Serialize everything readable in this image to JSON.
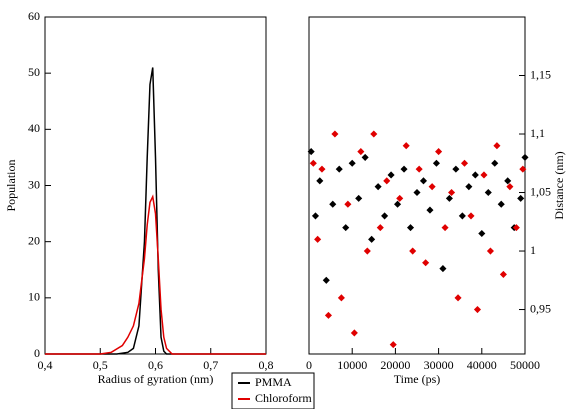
{
  "chart_data": [
    {
      "type": "line",
      "xlabel": "Radius of gyration (nm)",
      "ylabel": "Population",
      "xlim": [
        0.4,
        0.8
      ],
      "ylim": [
        0,
        60
      ],
      "xticks": [
        {
          "value": 0.4,
          "label": "0,4"
        },
        {
          "value": 0.5,
          "label": "0,5"
        },
        {
          "value": 0.6,
          "label": "0,6"
        },
        {
          "value": 0.7,
          "label": "0,7"
        },
        {
          "value": 0.8,
          "label": "0,8"
        }
      ],
      "yticks": [
        0,
        10,
        20,
        30,
        40,
        50,
        60
      ],
      "series": [
        {
          "name": "PMMA",
          "color": "#000000",
          "x": [
            0.4,
            0.5,
            0.53,
            0.55,
            0.56,
            0.57,
            0.58,
            0.585,
            0.59,
            0.595,
            0.6,
            0.605,
            0.61,
            0.615,
            0.62,
            0.8
          ],
          "values": [
            0,
            0,
            0,
            0.3,
            1,
            5,
            20,
            35,
            48,
            51,
            35,
            15,
            3,
            0.5,
            0,
            0
          ]
        },
        {
          "name": "Chloroform",
          "color": "#e00000",
          "x": [
            0.4,
            0.5,
            0.52,
            0.54,
            0.55,
            0.56,
            0.57,
            0.58,
            0.585,
            0.59,
            0.595,
            0.6,
            0.605,
            0.61,
            0.615,
            0.62,
            0.63,
            0.8
          ],
          "values": [
            0,
            0,
            0.3,
            1.5,
            3,
            5,
            9,
            17,
            23,
            27,
            28,
            25,
            17,
            8,
            3,
            1,
            0,
            0
          ]
        }
      ]
    },
    {
      "type": "scatter",
      "xlabel": "Time (ps)",
      "ylabel": "Distance (nm)",
      "xlim": [
        0,
        50000
      ],
      "ylim": [
        0.912,
        1.2
      ],
      "xticks": [
        0,
        10000,
        20000,
        30000,
        40000,
        50000
      ],
      "yticks": [
        {
          "value": 0.95,
          "label": "0,95"
        },
        1,
        {
          "value": 1.05,
          "label": "1,05"
        },
        {
          "value": 1.1,
          "label": "1,1"
        },
        {
          "value": 1.15,
          "label": "1,15"
        }
      ],
      "series": [
        {
          "color": "#000000",
          "x": [
            500,
            1500,
            2500,
            4000,
            5500,
            7000,
            8500,
            10000,
            11500,
            13000,
            14500,
            16000,
            17500,
            19000,
            20500,
            22000,
            23500,
            25000,
            26500,
            28000,
            29500,
            31000,
            32500,
            34000,
            35500,
            37000,
            38500,
            40000,
            41500,
            43000,
            44500,
            46000,
            47500,
            49000,
            50000
          ],
          "values": [
            1.085,
            1.03,
            1.06,
            0.975,
            1.04,
            1.07,
            1.02,
            1.075,
            1.045,
            1.08,
            1.01,
            1.055,
            1.03,
            1.065,
            1.04,
            1.07,
            1.02,
            1.05,
            1.06,
            1.035,
            1.075,
            0.985,
            1.045,
            1.07,
            1.03,
            1.055,
            1.065,
            1.015,
            1.05,
            1.075,
            1.04,
            1.06,
            1.02,
            1.045,
            1.08
          ]
        },
        {
          "color": "#e00000",
          "x": [
            1000,
            2000,
            3000,
            4500,
            6000,
            7500,
            9000,
            10500,
            12000,
            13500,
            15000,
            16500,
            18000,
            19500,
            21000,
            22500,
            24000,
            25500,
            27000,
            28500,
            30000,
            31500,
            33000,
            34500,
            36000,
            37500,
            39000,
            40500,
            42000,
            43500,
            45000,
            46500,
            48000,
            49500
          ],
          "values": [
            1.075,
            1.01,
            1.07,
            0.945,
            1.1,
            0.96,
            1.04,
            0.93,
            1.085,
            1.0,
            1.1,
            1.02,
            1.06,
            0.92,
            1.045,
            1.09,
            1.0,
            1.07,
            0.99,
            1.055,
            1.085,
            1.02,
            1.05,
            0.96,
            1.075,
            1.03,
            0.95,
            1.065,
            1.0,
            1.09,
            0.98,
            1.055,
            1.02,
            1.07
          ]
        }
      ]
    }
  ]
}
